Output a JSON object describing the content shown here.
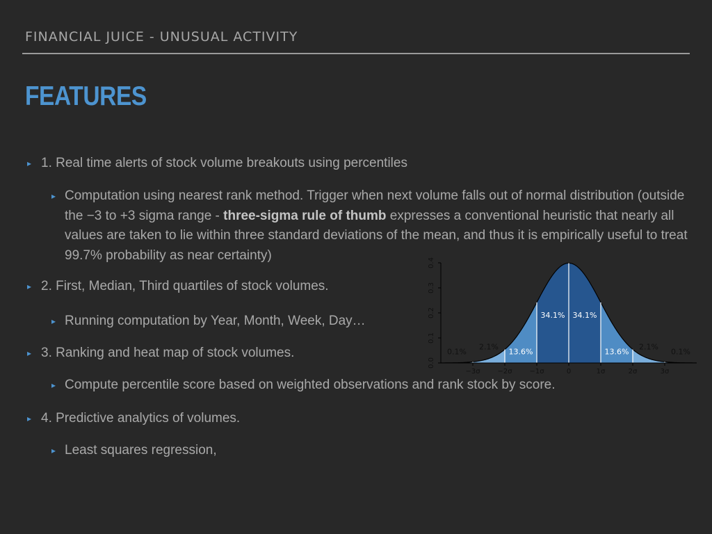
{
  "header": {
    "title": "FINANCIAL JUICE - UNUSUAL ACTIVITY"
  },
  "page_title": "FEATURES",
  "bullets": {
    "b1": "1. Real time alerts of stock volume breakouts using percentiles",
    "b1_sub_before": "Computation using nearest rank method. Trigger when next volume falls out of normal distribution (outside the −3 to +3 sigma range - ",
    "b1_sub_bold": "three-sigma rule of thumb",
    "b1_sub_after": " expresses a conventional heuristic that nearly all values are taken to lie within three standard deviations of the mean, and thus it is empirically useful to treat 99.7% probability as near certainty)",
    "b2": "2. First, Median, Third quartiles of stock volumes.",
    "b2_sub": "Running computation by Year, Month, Week, Day…",
    "b3": "3. Ranking and heat map of stock volumes.",
    "b3_sub": "Compute percentile score based on weighted observations and rank stock by score.",
    "b4": "4. Predictive analytics of volumes.",
    "b4_sub": "Least squares regression,"
  },
  "bullet_marker": "▸",
  "colors": {
    "accent": "#4d94d0",
    "band_inner": "#26568f",
    "band_middle": "#4f8cc4",
    "band_outer": "#7aaedc"
  },
  "chart_data": {
    "type": "area",
    "title": "",
    "xlabel": "",
    "ylabel": "",
    "x_ticks": [
      "−3σ",
      "−2σ",
      "−1σ",
      "0",
      "1σ",
      "2σ",
      "3σ"
    ],
    "y_ticks": [
      "0.0",
      "0.1",
      "0.2",
      "0.3",
      "0.4"
    ],
    "xlim": [
      -4,
      4
    ],
    "ylim": [
      0,
      0.4
    ],
    "curve": "standard normal density",
    "bands": [
      {
        "range": [
          -3,
          -2
        ],
        "percent": "2.1%"
      },
      {
        "range": [
          -2,
          -1
        ],
        "percent": "13.6%"
      },
      {
        "range": [
          -1,
          0
        ],
        "percent": "34.1%"
      },
      {
        "range": [
          0,
          1
        ],
        "percent": "34.1%"
      },
      {
        "range": [
          1,
          2
        ],
        "percent": "13.6%"
      },
      {
        "range": [
          2,
          3
        ],
        "percent": "2.1%"
      }
    ],
    "tail_labels": [
      "0.1%",
      "0.1%"
    ]
  }
}
